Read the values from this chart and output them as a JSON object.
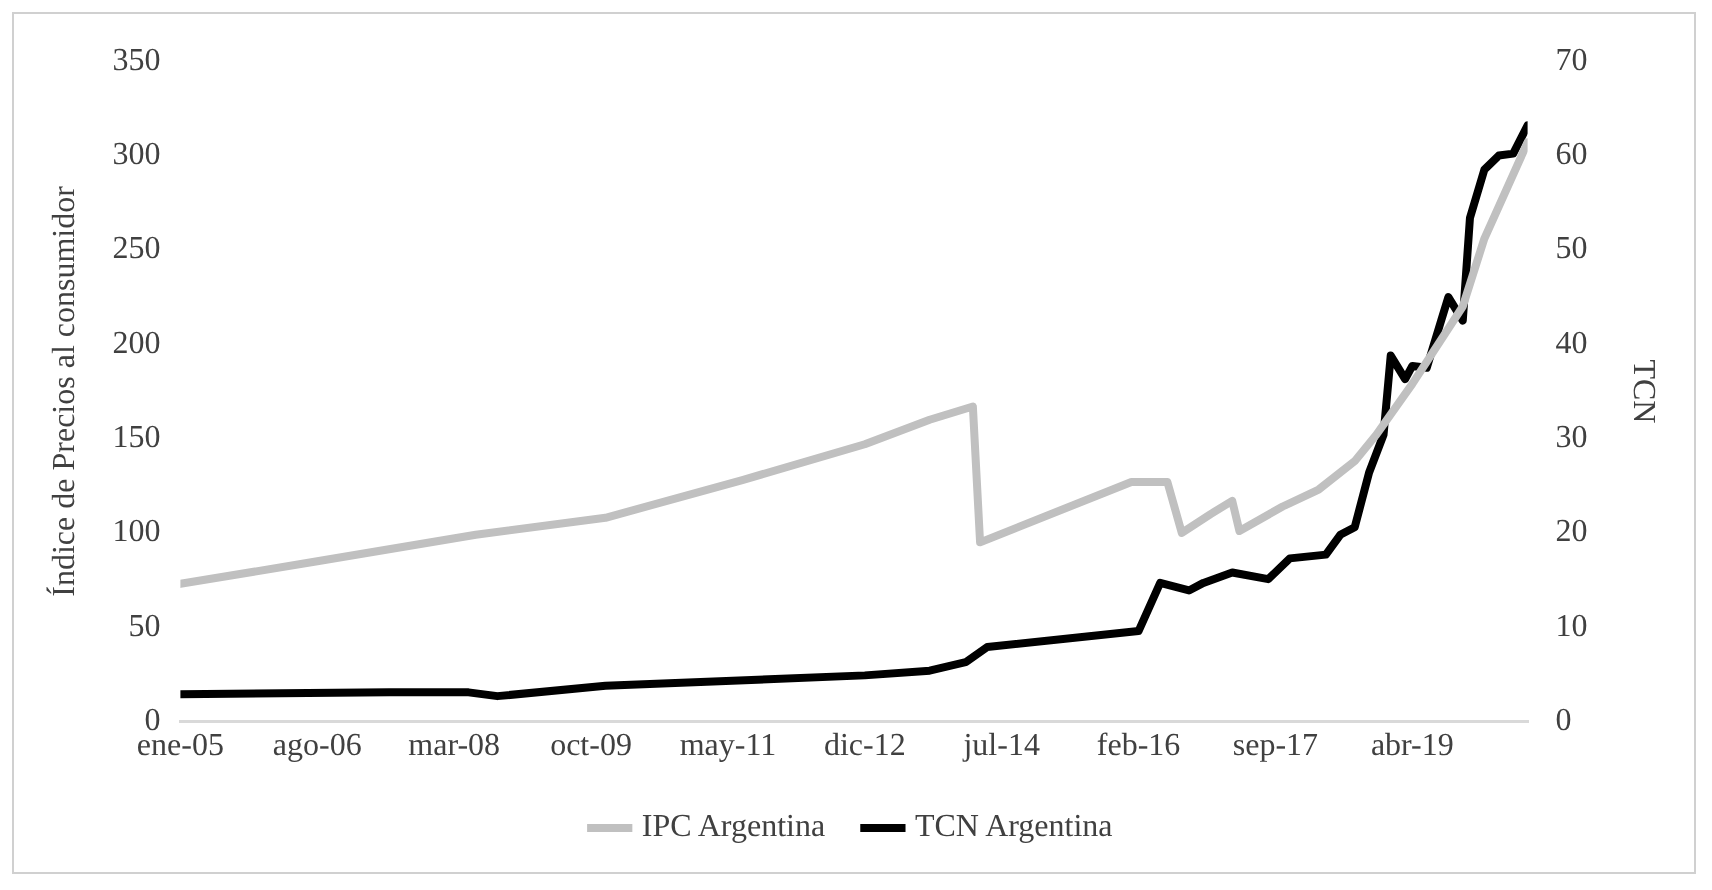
{
  "chart_data": {
    "type": "line",
    "ylabel": "Índice de Precios al consumidor",
    "y2label": "TCN",
    "xlim": [
      "2005-01",
      "2020-08"
    ],
    "xticks": [
      {
        "value": "2005-01",
        "label": "ene-05"
      },
      {
        "value": "2006-08",
        "label": "ago-06"
      },
      {
        "value": "2008-03",
        "label": "mar-08"
      },
      {
        "value": "2009-10",
        "label": "oct-09"
      },
      {
        "value": "2011-05",
        "label": "may-11"
      },
      {
        "value": "2012-12",
        "label": "dic-12"
      },
      {
        "value": "2014-07",
        "label": "jul-14"
      },
      {
        "value": "2016-02",
        "label": "feb-16"
      },
      {
        "value": "2017-09",
        "label": "sep-17"
      },
      {
        "value": "2019-04",
        "label": "abr-19"
      }
    ],
    "ylim": [
      0,
      350
    ],
    "yticks": [
      0,
      50,
      100,
      150,
      200,
      250,
      300,
      350
    ],
    "y2lim": [
      0,
      70
    ],
    "y2ticks": [
      0,
      10,
      20,
      30,
      40,
      50,
      60,
      70
    ],
    "grid": false,
    "legend": "bottom",
    "marker": "none",
    "line_style": "solid",
    "series": [
      {
        "name": "IPC Argentina",
        "color": "#c0c0c0",
        "axis": "y",
        "x": [
          "2005-01",
          "2006-08",
          "2008-06",
          "2009-12",
          "2011-07",
          "2012-12",
          "2013-09",
          "2014-03",
          "2014-04",
          "2016-01",
          "2016-06",
          "2016-08",
          "2016-12",
          "2017-03",
          "2017-04",
          "2017-10",
          "2018-03",
          "2018-08",
          "2018-11",
          "2019-04",
          "2019-11",
          "2020-02",
          "2020-08"
        ],
        "values": [
          73,
          85,
          99,
          108,
          128,
          147,
          160,
          167,
          95,
          127,
          127,
          100,
          110,
          117,
          101,
          114,
          123,
          138,
          152,
          179,
          220,
          256,
          307
        ]
      },
      {
        "name": "TCN Argentina",
        "color": "#000000",
        "axis": "y2",
        "x": [
          "2005-01",
          "2007-06",
          "2008-05",
          "2008-09",
          "2009-12",
          "2012-12",
          "2013-09",
          "2014-02",
          "2014-05",
          "2016-02",
          "2016-05",
          "2016-09",
          "2016-11",
          "2017-03",
          "2017-08",
          "2017-11",
          "2018-04",
          "2018-06",
          "2018-08",
          "2018-10",
          "2018-12",
          "2019-01",
          "2019-03",
          "2019-04",
          "2019-06",
          "2019-08",
          "2019-09",
          "2019-11",
          "2019-12",
          "2020-02",
          "2020-04",
          "2020-06",
          "2020-08"
        ],
        "values": [
          2.9,
          3.1,
          3.1,
          2.7,
          3.8,
          4.9,
          5.4,
          6.3,
          7.9,
          9.6,
          14.7,
          13.9,
          14.7,
          15.8,
          15.1,
          17.3,
          17.7,
          19.8,
          20.6,
          26.4,
          30.4,
          38.8,
          36.3,
          37.7,
          37.5,
          42.5,
          45,
          42.5,
          53.4,
          58.5,
          60,
          60.2,
          63.2
        ]
      }
    ]
  }
}
